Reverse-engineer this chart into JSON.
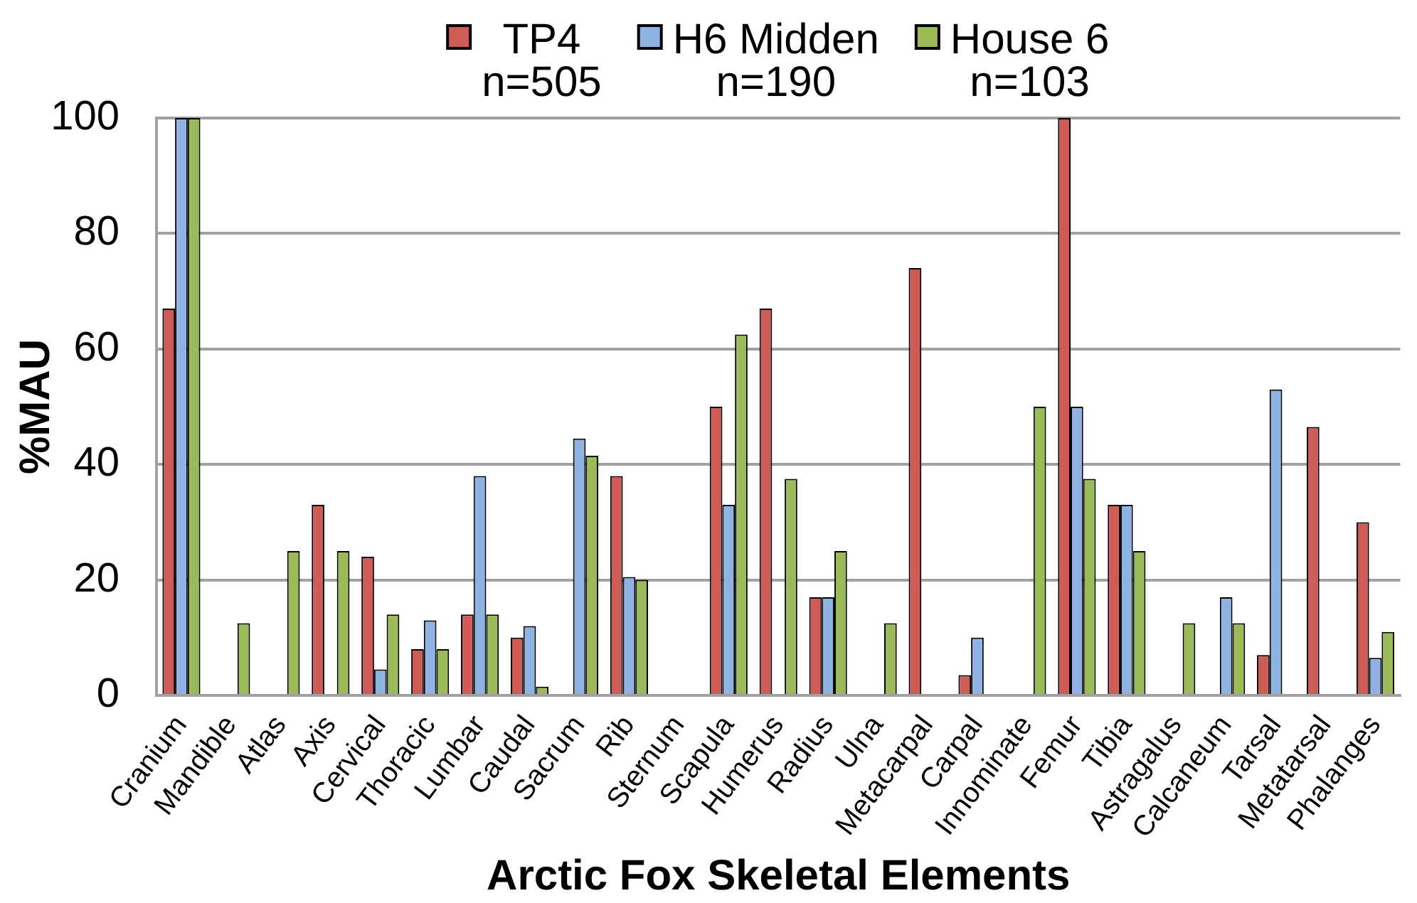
{
  "chart_data": {
    "type": "bar",
    "xlabel": "Arctic Fox Skeletal Elements",
    "ylabel": "%MAU",
    "categories": [
      "Cranium",
      "Mandible",
      "Atlas",
      "Axis",
      "Cervical",
      "Thoracic",
      "Lumbar",
      "Caudal",
      "Sacrum",
      "Rib",
      "Sternum",
      "Scapula",
      "Humerus",
      "Radius",
      "Ulna",
      "Metacarpal",
      "Carpal",
      "Innominate",
      "Femur",
      "Tibia",
      "Astragalus",
      "Calcaneum",
      "Tarsal",
      "Metatarsal",
      "Phalanges"
    ],
    "series": [
      {
        "name": "TP4\nn=505",
        "color": "#cd5c57",
        "values": [
          67,
          null,
          null,
          33,
          24,
          8,
          14,
          10,
          null,
          38,
          null,
          50,
          67,
          17,
          null,
          74,
          3.5,
          null,
          100,
          33,
          null,
          null,
          7,
          46.5,
          30
        ]
      },
      {
        "name": "H6 Midden\nn=190",
        "color": "#8fb4e3",
        "values": [
          100,
          null,
          null,
          null,
          4.5,
          13,
          38,
          12,
          44.5,
          20.5,
          null,
          33,
          null,
          17,
          null,
          null,
          10,
          null,
          50,
          33,
          null,
          17,
          53,
          null,
          6.5
        ]
      },
      {
        "name": "House 6\nn=103",
        "color": "#9bbb59",
        "values": [
          100,
          12.5,
          25,
          25,
          14,
          8,
          14,
          1.5,
          41.5,
          20,
          null,
          62.5,
          37.5,
          25,
          12.5,
          null,
          null,
          50,
          37.5,
          25,
          12.5,
          12.5,
          null,
          null,
          11
        ]
      }
    ],
    "ylim": [
      0,
      100
    ],
    "yticks": [
      0,
      20,
      40,
      60,
      80,
      100
    ],
    "grid": "y",
    "legend": "top"
  }
}
